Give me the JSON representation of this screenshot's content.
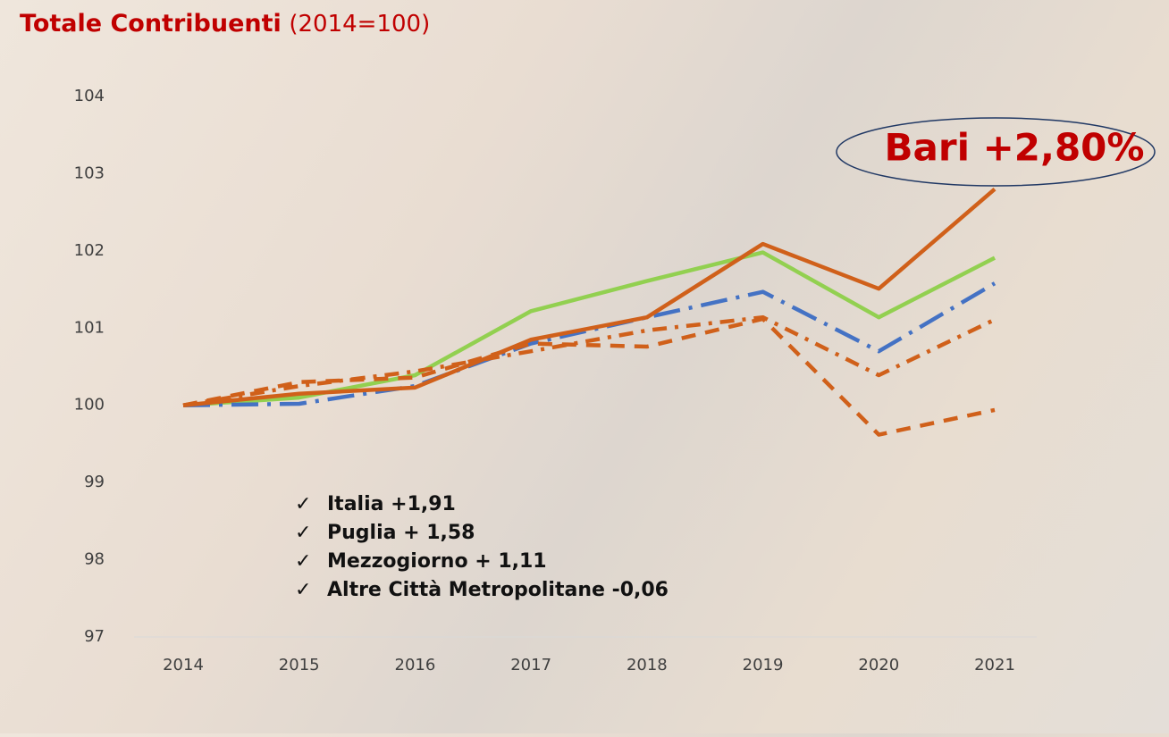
{
  "chart_data": {
    "type": "line",
    "title": "Totale Contribuenti",
    "subtitle": "(2014=100)",
    "x": [
      2014,
      2015,
      2016,
      2017,
      2018,
      2019,
      2020,
      2021
    ],
    "xlim": [
      2014,
      2021
    ],
    "ylim": [
      97,
      104
    ],
    "yticks": [
      97,
      98,
      99,
      100,
      101,
      102,
      103,
      104
    ],
    "series": [
      {
        "color": "#92d050",
        "style": "solid",
        "values": [
          100,
          100.1,
          100.39,
          101.22,
          101.61,
          101.98,
          101.14,
          101.91
        ]
      },
      {
        "color": "#4472c4",
        "style": "longdashdot",
        "values": [
          100,
          100.02,
          100.25,
          100.8,
          101.14,
          101.47,
          100.7,
          101.58
        ]
      },
      {
        "color": "#d0601a",
        "style": "dashdot",
        "values": [
          100,
          100.25,
          100.44,
          100.7,
          100.97,
          101.14,
          100.39,
          101.11
        ]
      },
      {
        "color": "#d0601a",
        "style": "dashed",
        "values": [
          100,
          100.3,
          100.36,
          100.8,
          100.76,
          101.12,
          99.62,
          99.94
        ]
      },
      {
        "color": "#d0601a",
        "style": "solid",
        "values": [
          100,
          100.15,
          100.23,
          100.85,
          101.14,
          102.09,
          101.51,
          102.8
        ]
      }
    ],
    "annotation": "Bari +2,80%",
    "notes": [
      "Italia +1,91",
      "Puglia + 1,58",
      "Mezzogiorno + 1,11",
      "Altre Città Metropolitane -0,06"
    ]
  }
}
